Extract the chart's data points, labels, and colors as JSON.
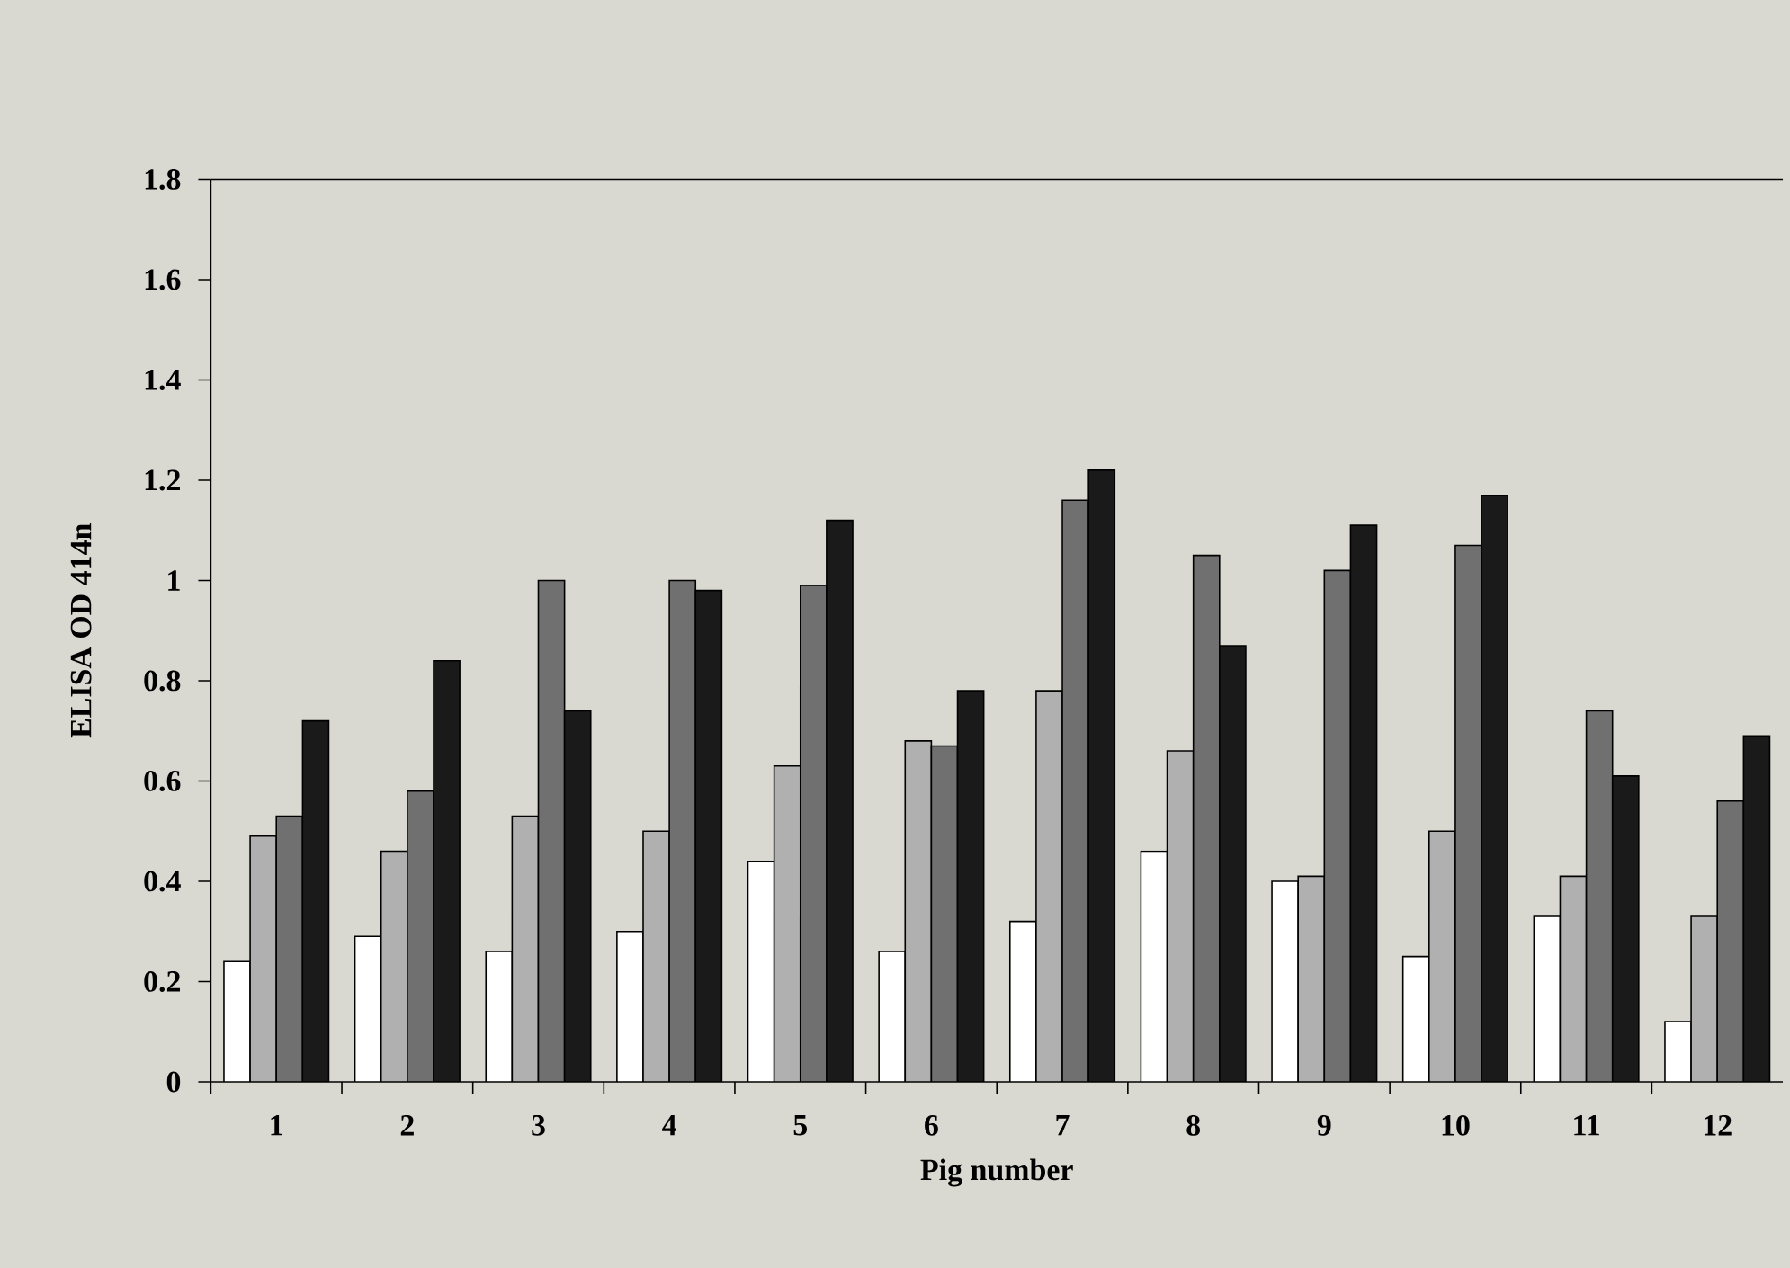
{
  "chart_data": {
    "type": "bar",
    "xlabel": "Pig number",
    "ylabel": "ELISA OD 414n",
    "categories": [
      "1",
      "2",
      "3",
      "4",
      "5",
      "6",
      "7",
      "8",
      "9",
      "10",
      "11",
      "12"
    ],
    "series": [
      {
        "color": "#ffffff",
        "values": [
          0.24,
          0.29,
          0.26,
          0.3,
          0.44,
          0.26,
          0.32,
          0.46,
          0.4,
          0.25,
          0.33,
          0.12
        ]
      },
      {
        "color": "#b0b0b0",
        "values": [
          0.49,
          0.46,
          0.53,
          0.5,
          0.63,
          0.68,
          0.78,
          0.66,
          0.41,
          0.5,
          0.41,
          0.33
        ]
      },
      {
        "color": "#707070",
        "values": [
          0.53,
          0.58,
          1.0,
          1.0,
          0.99,
          0.67,
          1.16,
          1.05,
          1.02,
          1.07,
          0.74,
          0.56
        ]
      },
      {
        "color": "#1a1a1a",
        "values": [
          0.72,
          0.84,
          0.74,
          0.98,
          1.12,
          0.78,
          1.22,
          0.87,
          1.11,
          1.17,
          0.61,
          0.69
        ]
      }
    ],
    "ylim": [
      0,
      1.8
    ],
    "yticks": [
      0,
      0.2,
      0.4,
      0.6,
      0.8,
      1,
      1.2,
      1.4,
      1.6,
      1.8
    ]
  }
}
